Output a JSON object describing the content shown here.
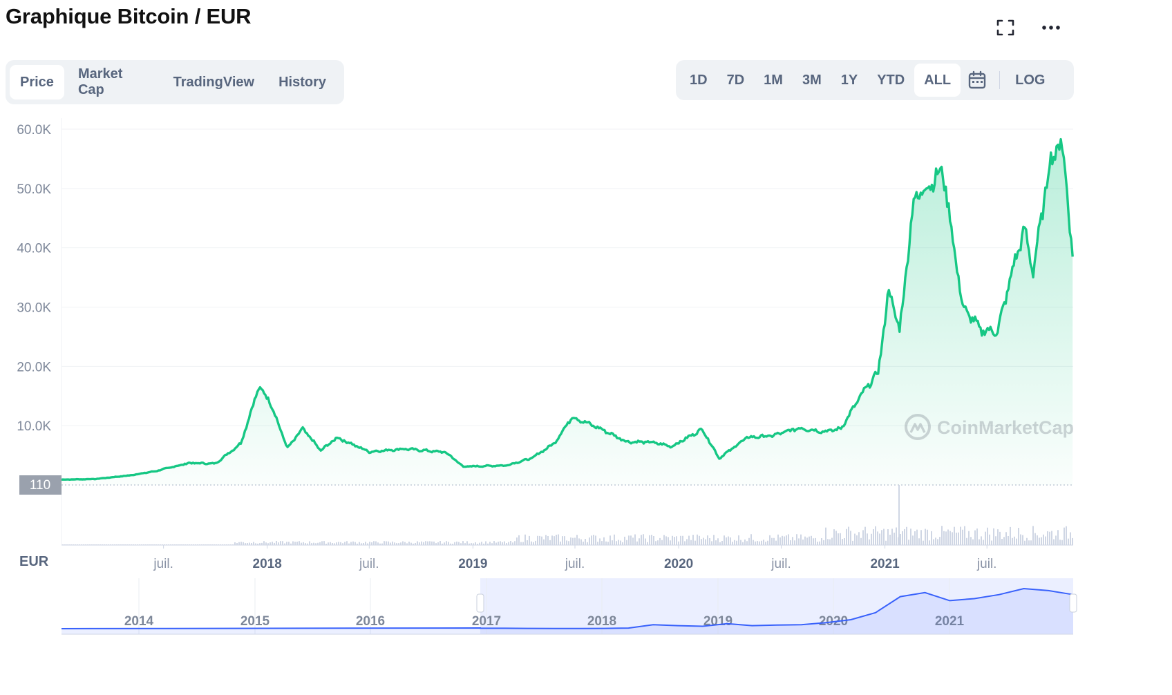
{
  "header": {
    "title": "Graphique Bitcoin / EUR"
  },
  "tabs": [
    "Price",
    "Market Cap",
    "TradingView",
    "History"
  ],
  "active_tab": "Price",
  "ranges": [
    "1D",
    "7D",
    "1M",
    "3M",
    "1Y",
    "YTD",
    "ALL"
  ],
  "active_range": "ALL",
  "log_label": "LOG",
  "currency_label": "EUR",
  "watermark": "CoinMarketCap",
  "colors": {
    "line": "#16c784",
    "navigator": "#3861fb",
    "axis_text": "#58667e"
  },
  "icons": {
    "fullscreen": "expand-icon",
    "more": "more-dots-icon",
    "calendar": "calendar-icon"
  },
  "chart_data": {
    "type": "area",
    "ylim": [
      0,
      60000
    ],
    "yticks": [
      10000,
      20000,
      30000,
      40000,
      50000,
      60000
    ],
    "ytick_labels": [
      "10.0K",
      "20.0K",
      "30.0K",
      "40.0K",
      "50.0K",
      "60.0K"
    ],
    "baseline_label": "110",
    "xlim": [
      "2017-01-01",
      "2021-12-01"
    ],
    "xticks": [
      {
        "date": "2017-07-01",
        "label": "juil.",
        "bold": false
      },
      {
        "date": "2018-01-01",
        "label": "2018",
        "bold": true
      },
      {
        "date": "2018-07-01",
        "label": "juil.",
        "bold": false
      },
      {
        "date": "2019-01-01",
        "label": "2019",
        "bold": true
      },
      {
        "date": "2019-07-01",
        "label": "juil.",
        "bold": false
      },
      {
        "date": "2020-01-01",
        "label": "2020",
        "bold": true
      },
      {
        "date": "2020-07-01",
        "label": "juil.",
        "bold": false
      },
      {
        "date": "2021-01-01",
        "label": "2021",
        "bold": true
      },
      {
        "date": "2021-07-01",
        "label": "juil.",
        "bold": false
      }
    ],
    "series": [
      {
        "x": [
          "2017-01-01",
          "2017-03-01",
          "2017-05-01",
          "2017-06-15",
          "2017-08-15",
          "2017-10-01",
          "2017-11-15",
          "2017-12-17",
          "2018-01-05",
          "2018-02-06",
          "2018-03-05",
          "2018-04-06",
          "2018-05-05",
          "2018-07-01",
          "2018-09-01",
          "2018-11-14",
          "2018-12-15",
          "2019-03-01",
          "2019-04-15",
          "2019-05-25",
          "2019-06-26",
          "2019-08-15",
          "2019-10-01",
          "2019-11-15",
          "2019-12-20",
          "2020-02-12",
          "2020-03-13",
          "2020-05-01",
          "2020-06-15",
          "2020-08-01",
          "2020-09-15",
          "2020-10-15",
          "2020-11-20",
          "2020-12-20",
          "2021-01-08",
          "2021-01-27",
          "2021-02-21",
          "2021-03-13",
          "2021-04-14",
          "2021-05-19",
          "2021-06-22",
          "2021-07-20",
          "2021-08-20",
          "2021-09-06",
          "2021-09-21",
          "2021-10-20",
          "2021-11-09",
          "2021-11-20",
          "2021-11-30"
        ],
        "y": [
          900,
          1000,
          1600,
          2300,
          3700,
          3600,
          7000,
          16500,
          14300,
          6200,
          9500,
          5800,
          8000,
          5600,
          6100,
          5500,
          3100,
          3300,
          4500,
          7000,
          11500,
          9500,
          7300,
          7200,
          6500,
          9400,
          4500,
          8000,
          8300,
          9600,
          9000,
          9500,
          15200,
          19000,
          33000,
          26000,
          48000,
          50000,
          53000,
          30000,
          26000,
          26000,
          38000,
          43000,
          36000,
          54000,
          58300,
          50000,
          38500
        ]
      }
    ]
  },
  "navigator": {
    "labels": [
      "2014",
      "2015",
      "2016",
      "2017",
      "2018",
      "2019",
      "2020",
      "2021"
    ],
    "series_y": [
      0.2,
      0.2,
      0.15,
      0.1,
      0.1,
      0.15,
      0.3,
      2.0,
      1.5,
      1.2,
      2.5,
      1.5,
      1.8,
      2.0,
      3.0,
      4.5,
      8.0,
      16.0,
      18.0,
      14.0,
      15.0,
      17.0,
      20.0,
      19.0,
      17.0
    ]
  }
}
